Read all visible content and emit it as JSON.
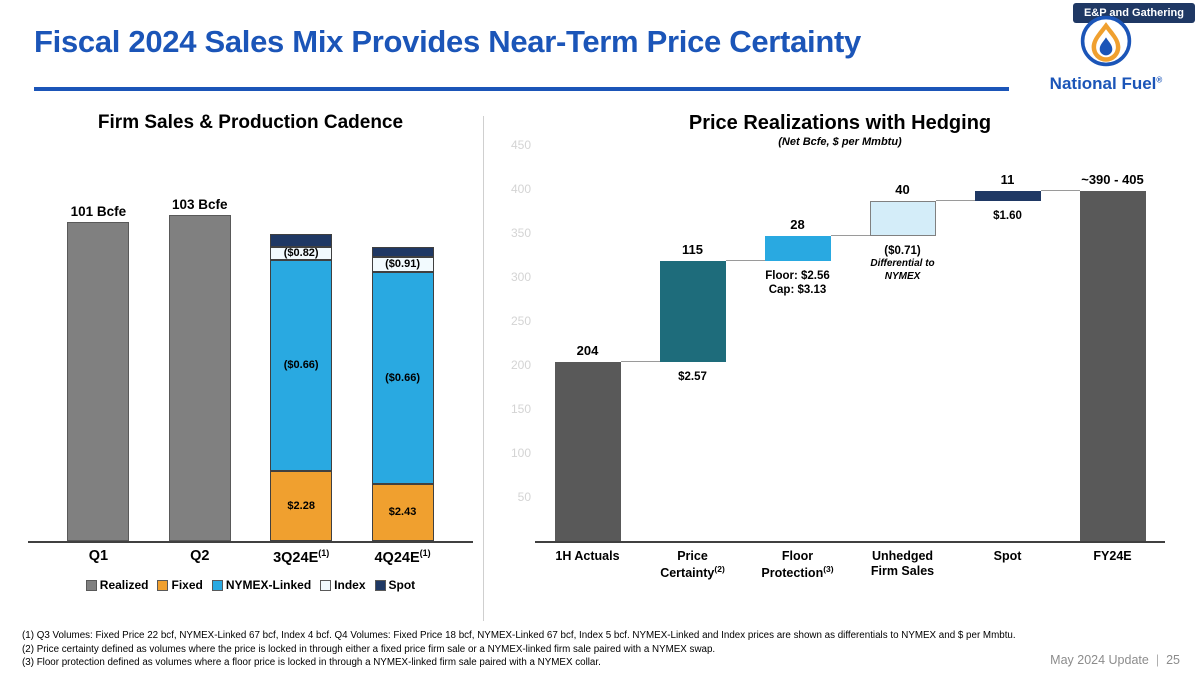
{
  "slide": {
    "badge": "E&P and Gathering",
    "title": "Fiscal 2024 Sales Mix Provides Near-Term Price Certainty",
    "logo_text": "National Fuel",
    "logo_reg": "®",
    "footer_left": "May 2024 Update",
    "footer_sep": "|",
    "page_number": "25",
    "footnotes": [
      "(1)  Q3 Volumes: Fixed Price 22 bcf, NYMEX-Linked 67 bcf, Index 4 bcf. Q4 Volumes: Fixed Price 18 bcf, NYMEX-Linked 67 bcf, Index 5 bcf.  NYMEX-Linked and Index prices are shown as differentials to NYMEX and $ per Mmbtu.",
      "(2)  Price certainty defined as volumes where the price is locked in through either a fixed price firm sale or a NYMEX-linked firm sale paired with a NYMEX swap.",
      "(3)  Floor protection defined as volumes where a floor price is locked in through a NYMEX-linked firm sale paired with a NYMEX collar."
    ]
  },
  "colors": {
    "brand_blue": "#1B55B8",
    "navy": "#1F3864",
    "gray_bar": "#808080",
    "dark_gray_bar": "#595959",
    "orange": "#F0A02F",
    "light_blue": "#29A9E1",
    "teal": "#1E6C7B",
    "pale_blue": "#D4EDF9"
  },
  "chart_data": [
    {
      "type": "bar",
      "stacked": true,
      "title": "Firm Sales & Production Cadence",
      "ylim": [
        0,
        106
      ],
      "categories": [
        {
          "label": "Q1",
          "sup": ""
        },
        {
          "label": "Q2",
          "sup": ""
        },
        {
          "label": "3Q24E",
          "sup": "(1)"
        },
        {
          "label": "4Q24E",
          "sup": "(1)"
        }
      ],
      "total_labels": [
        "101 Bcfe",
        "103 Bcfe",
        "",
        ""
      ],
      "series": [
        {
          "name": "Realized",
          "color": "#808080",
          "border": "#595959",
          "values": [
            101,
            103,
            0,
            0
          ],
          "labels": [
            "",
            "",
            "",
            ""
          ]
        },
        {
          "name": "Fixed",
          "color": "#F0A02F",
          "border": "#404040",
          "values": [
            0,
            0,
            22,
            18
          ],
          "labels": [
            "",
            "",
            "$2.28",
            "$2.43"
          ]
        },
        {
          "name": "NYMEX-Linked",
          "color": "#29A9E1",
          "border": "#404040",
          "values": [
            0,
            0,
            67,
            67
          ],
          "labels": [
            "",
            "",
            "($0.66)",
            "($0.66)"
          ]
        },
        {
          "name": "Index",
          "color": "#F2FAFE",
          "border": "#404040",
          "values": [
            0,
            0,
            4,
            5
          ],
          "labels": [
            "",
            "",
            "($0.82)",
            "($0.91)"
          ]
        },
        {
          "name": "Spot",
          "color": "#1F3864",
          "border": "#404040",
          "values": [
            0,
            0,
            4,
            3
          ],
          "labels": [
            "",
            "",
            "",
            ""
          ]
        }
      ],
      "legend": [
        {
          "label": "Realized",
          "color": "#808080"
        },
        {
          "label": "Fixed",
          "color": "#F0A02F"
        },
        {
          "label": "NYMEX-Linked",
          "color": "#29A9E1"
        },
        {
          "label": "Index",
          "color": "#F2FAFE"
        },
        {
          "label": "Spot",
          "color": "#1F3864"
        }
      ]
    },
    {
      "type": "waterfall",
      "title": "Price Realizations with Hedging",
      "subtitle": "(Net Bcfe, $ per Mmbtu)",
      "ylim": [
        0,
        455
      ],
      "yticks": [
        450,
        400,
        350,
        300,
        250,
        200,
        150,
        100,
        50
      ],
      "bars": [
        {
          "name": "1H Actuals",
          "label_lines": [
            "1H Actuals"
          ],
          "sup": "",
          "base": 0,
          "value": 204,
          "value_label": "204",
          "sub_bold_lines": [],
          "sub_italic_lines": [],
          "color": "#595959"
        },
        {
          "name": "Price Certainty",
          "label_lines": [
            "Price",
            "Certainty"
          ],
          "sup": "(2)",
          "base": 204,
          "value": 115,
          "value_label": "115",
          "sub_bold_lines": [
            "$2.57"
          ],
          "sub_italic_lines": [],
          "color": "#1E6C7B"
        },
        {
          "name": "Floor Protection",
          "label_lines": [
            "Floor",
            "Protection"
          ],
          "sup": "(3)",
          "base": 319,
          "value": 28,
          "value_label": "28",
          "sub_bold_lines": [
            "Floor: $2.56",
            "Cap: $3.13"
          ],
          "sub_italic_lines": [],
          "color": "#29A9E1"
        },
        {
          "name": "Unhedged Firm Sales",
          "label_lines": [
            "Unhedged",
            "Firm Sales"
          ],
          "sup": "",
          "base": 347,
          "value": 40,
          "value_label": "40",
          "sub_bold_lines": [
            "($0.71)"
          ],
          "sub_italic_lines": [
            "Differential to",
            "NYMEX"
          ],
          "color": "#D4EDF9",
          "border": "#808080"
        },
        {
          "name": "Spot",
          "label_lines": [
            "Spot"
          ],
          "sup": "",
          "base": 387,
          "value": 11,
          "value_label": "11",
          "sub_bold_lines": [
            "$1.60"
          ],
          "sub_italic_lines": [],
          "color": "#1F3864"
        },
        {
          "name": "FY24E",
          "label_lines": [
            "FY24E"
          ],
          "sup": "",
          "base": 0,
          "value": 398,
          "value_label": "~390 - 405",
          "sub_bold_lines": [],
          "sub_italic_lines": [],
          "color": "#595959"
        }
      ]
    }
  ]
}
